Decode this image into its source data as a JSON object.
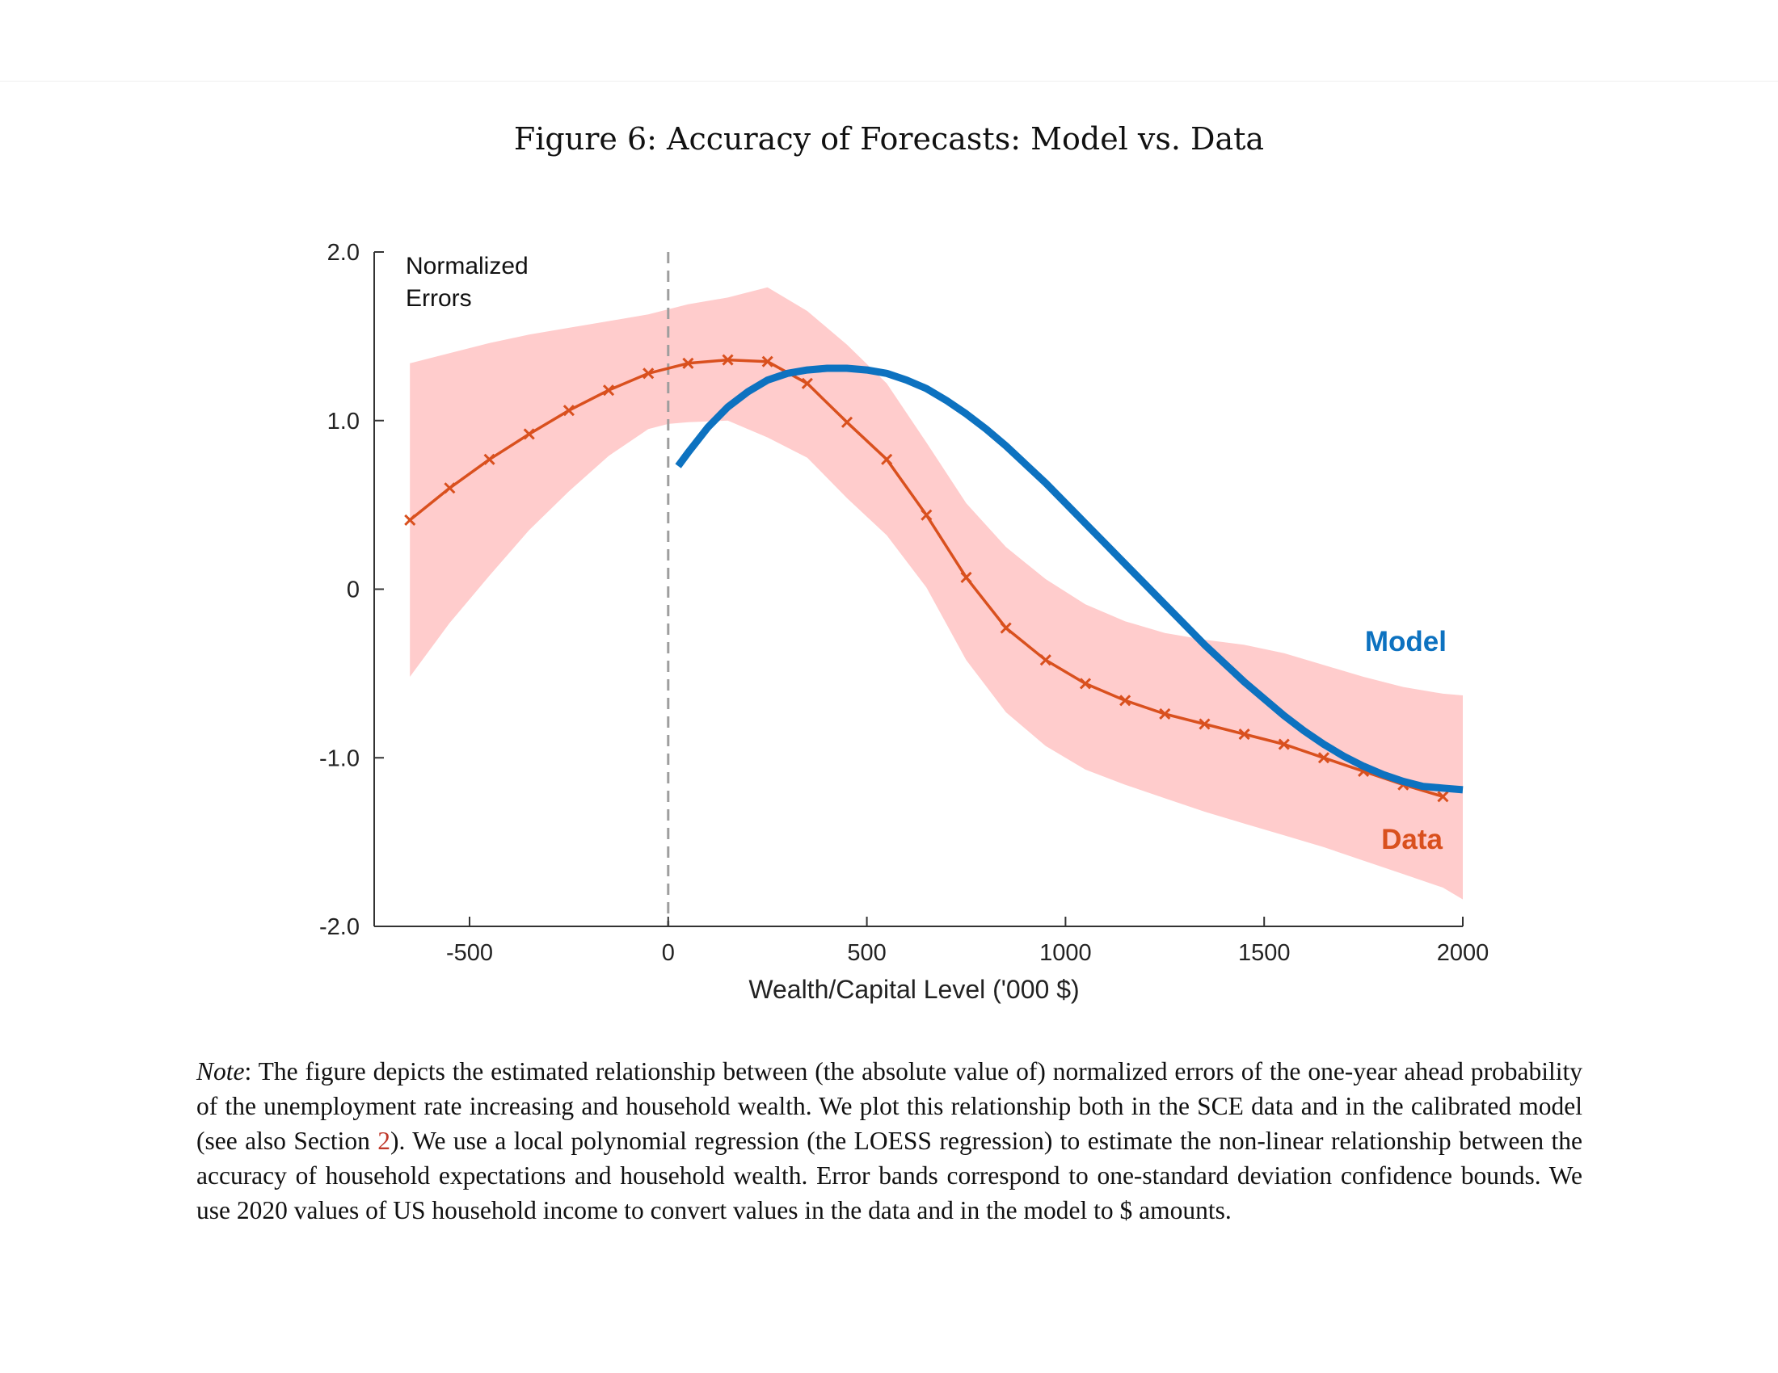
{
  "figure": {
    "title": "Figure 6: Accuracy of Forecasts: Model vs. Data"
  },
  "chart_data": {
    "type": "line",
    "title": "Figure 6: Accuracy of Forecasts: Model vs. Data",
    "xlabel": "Wealth/Capital Level ('000 $)",
    "ylabel": "Normalized Errors",
    "xlim": [
      -740,
      2000
    ],
    "ylim": [
      -2.0,
      2.0
    ],
    "x_ticks": [
      -500,
      0,
      500,
      1000,
      1500,
      2000
    ],
    "x_tick_labels": [
      "-500",
      "0",
      "500",
      "1000",
      "1500",
      "2000"
    ],
    "y_ticks": [
      2.0,
      1.0,
      0,
      -1.0,
      -2.0
    ],
    "y_tick_labels": [
      "2.0",
      "1.0",
      "0",
      "-1.0",
      "-2.0"
    ],
    "grid": false,
    "reference_line": {
      "x": 0,
      "style": "dashed",
      "color": "#9e9e9e"
    },
    "series": [
      {
        "name": "Data",
        "color": "#d9501e",
        "marker": "x",
        "x": [
          -650,
          -550,
          -450,
          -350,
          -250,
          -150,
          -50,
          50,
          150,
          250,
          350,
          450,
          550,
          650,
          750,
          850,
          950,
          1050,
          1150,
          1250,
          1350,
          1450,
          1550,
          1650,
          1750,
          1850,
          1950
        ],
        "y": [
          0.41,
          0.6,
          0.77,
          0.92,
          1.06,
          1.18,
          1.28,
          1.34,
          1.36,
          1.35,
          1.22,
          0.99,
          0.77,
          0.44,
          0.07,
          -0.23,
          -0.42,
          -0.56,
          -0.66,
          -0.74,
          -0.8,
          -0.86,
          -0.92,
          -1.0,
          -1.08,
          -1.16,
          -1.23
        ]
      },
      {
        "name": "Data confidence band",
        "type": "area",
        "color": "#ffcccc",
        "x": [
          -650,
          -550,
          -450,
          -350,
          -250,
          -150,
          -50,
          0,
          50,
          150,
          250,
          350,
          450,
          550,
          650,
          750,
          850,
          950,
          1050,
          1150,
          1250,
          1350,
          1450,
          1550,
          1650,
          1750,
          1850,
          1950,
          2000
        ],
        "upper": [
          1.34,
          1.4,
          1.46,
          1.51,
          1.55,
          1.59,
          1.63,
          1.66,
          1.69,
          1.73,
          1.79,
          1.65,
          1.45,
          1.22,
          0.87,
          0.51,
          0.25,
          0.06,
          -0.09,
          -0.19,
          -0.26,
          -0.3,
          -0.33,
          -0.38,
          -0.45,
          -0.52,
          -0.58,
          -0.62,
          -0.63
        ],
        "lower": [
          -0.52,
          -0.2,
          0.08,
          0.35,
          0.58,
          0.79,
          0.95,
          0.98,
          0.99,
          1.0,
          0.9,
          0.78,
          0.54,
          0.32,
          0.01,
          -0.42,
          -0.73,
          -0.93,
          -1.07,
          -1.16,
          -1.24,
          -1.32,
          -1.39,
          -1.46,
          -1.53,
          -1.61,
          -1.69,
          -1.77,
          -1.84
        ]
      },
      {
        "name": "Model",
        "color": "#0d72c0",
        "x": [
          25,
          50,
          100,
          150,
          200,
          250,
          300,
          350,
          400,
          450,
          500,
          550,
          600,
          650,
          700,
          750,
          800,
          850,
          900,
          950,
          1000,
          1050,
          1100,
          1150,
          1200,
          1250,
          1300,
          1350,
          1400,
          1450,
          1500,
          1550,
          1600,
          1650,
          1700,
          1750,
          1800,
          1850,
          1900,
          1950,
          2000
        ],
        "y": [
          0.73,
          0.81,
          0.96,
          1.08,
          1.17,
          1.24,
          1.28,
          1.3,
          1.31,
          1.31,
          1.3,
          1.28,
          1.24,
          1.19,
          1.12,
          1.04,
          0.95,
          0.85,
          0.74,
          0.63,
          0.51,
          0.39,
          0.27,
          0.15,
          0.03,
          -0.09,
          -0.21,
          -0.33,
          -0.44,
          -0.55,
          -0.65,
          -0.75,
          -0.84,
          -0.92,
          -0.99,
          -1.05,
          -1.1,
          -1.14,
          -1.17,
          -1.18,
          -1.19
        ]
      }
    ],
    "labels": {
      "model": "Model",
      "data": "Data"
    }
  },
  "note": {
    "label": "Note",
    "text_before": ": The figure depicts the estimated relationship between (the absolute value of) normalized errors of the one-year ahead probability of the unemployment rate increasing and household wealth. We plot this relationship both in the SCE data and in the calibrated model (see also Section ",
    "ref": "2",
    "text_after": "). We use a local polynomial regression (the LOESS regression) to estimate the non-linear relationship between the accuracy of household expectations and household wealth. Error bands correspond to one-standard deviation confidence bounds. We use 2020 values of US household income to convert values in the data and in the model to $ amounts."
  }
}
